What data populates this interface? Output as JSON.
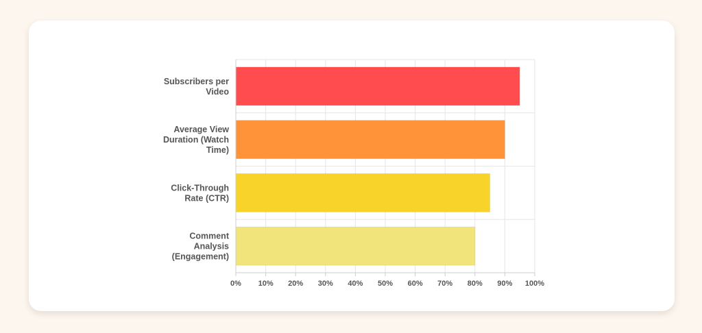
{
  "chart_data": {
    "type": "bar",
    "orientation": "horizontal",
    "categories": [
      [
        "Subscribers per",
        "Video"
      ],
      [
        "Average View",
        "Duration (Watch",
        "Time)"
      ],
      [
        "Click-Through",
        "Rate (CTR)"
      ],
      [
        "Comment",
        "Analysis",
        "(Engagement)"
      ]
    ],
    "values": [
      95,
      90,
      85,
      80
    ],
    "colors": [
      "#ff4d4f",
      "#ff9339",
      "#f8d42a",
      "#f0e47a"
    ],
    "xlim": [
      0,
      100
    ],
    "xticks": [
      0,
      10,
      20,
      30,
      40,
      50,
      60,
      70,
      80,
      90,
      100
    ],
    "tick_suffix": "%",
    "grid": true,
    "legend": "none"
  }
}
